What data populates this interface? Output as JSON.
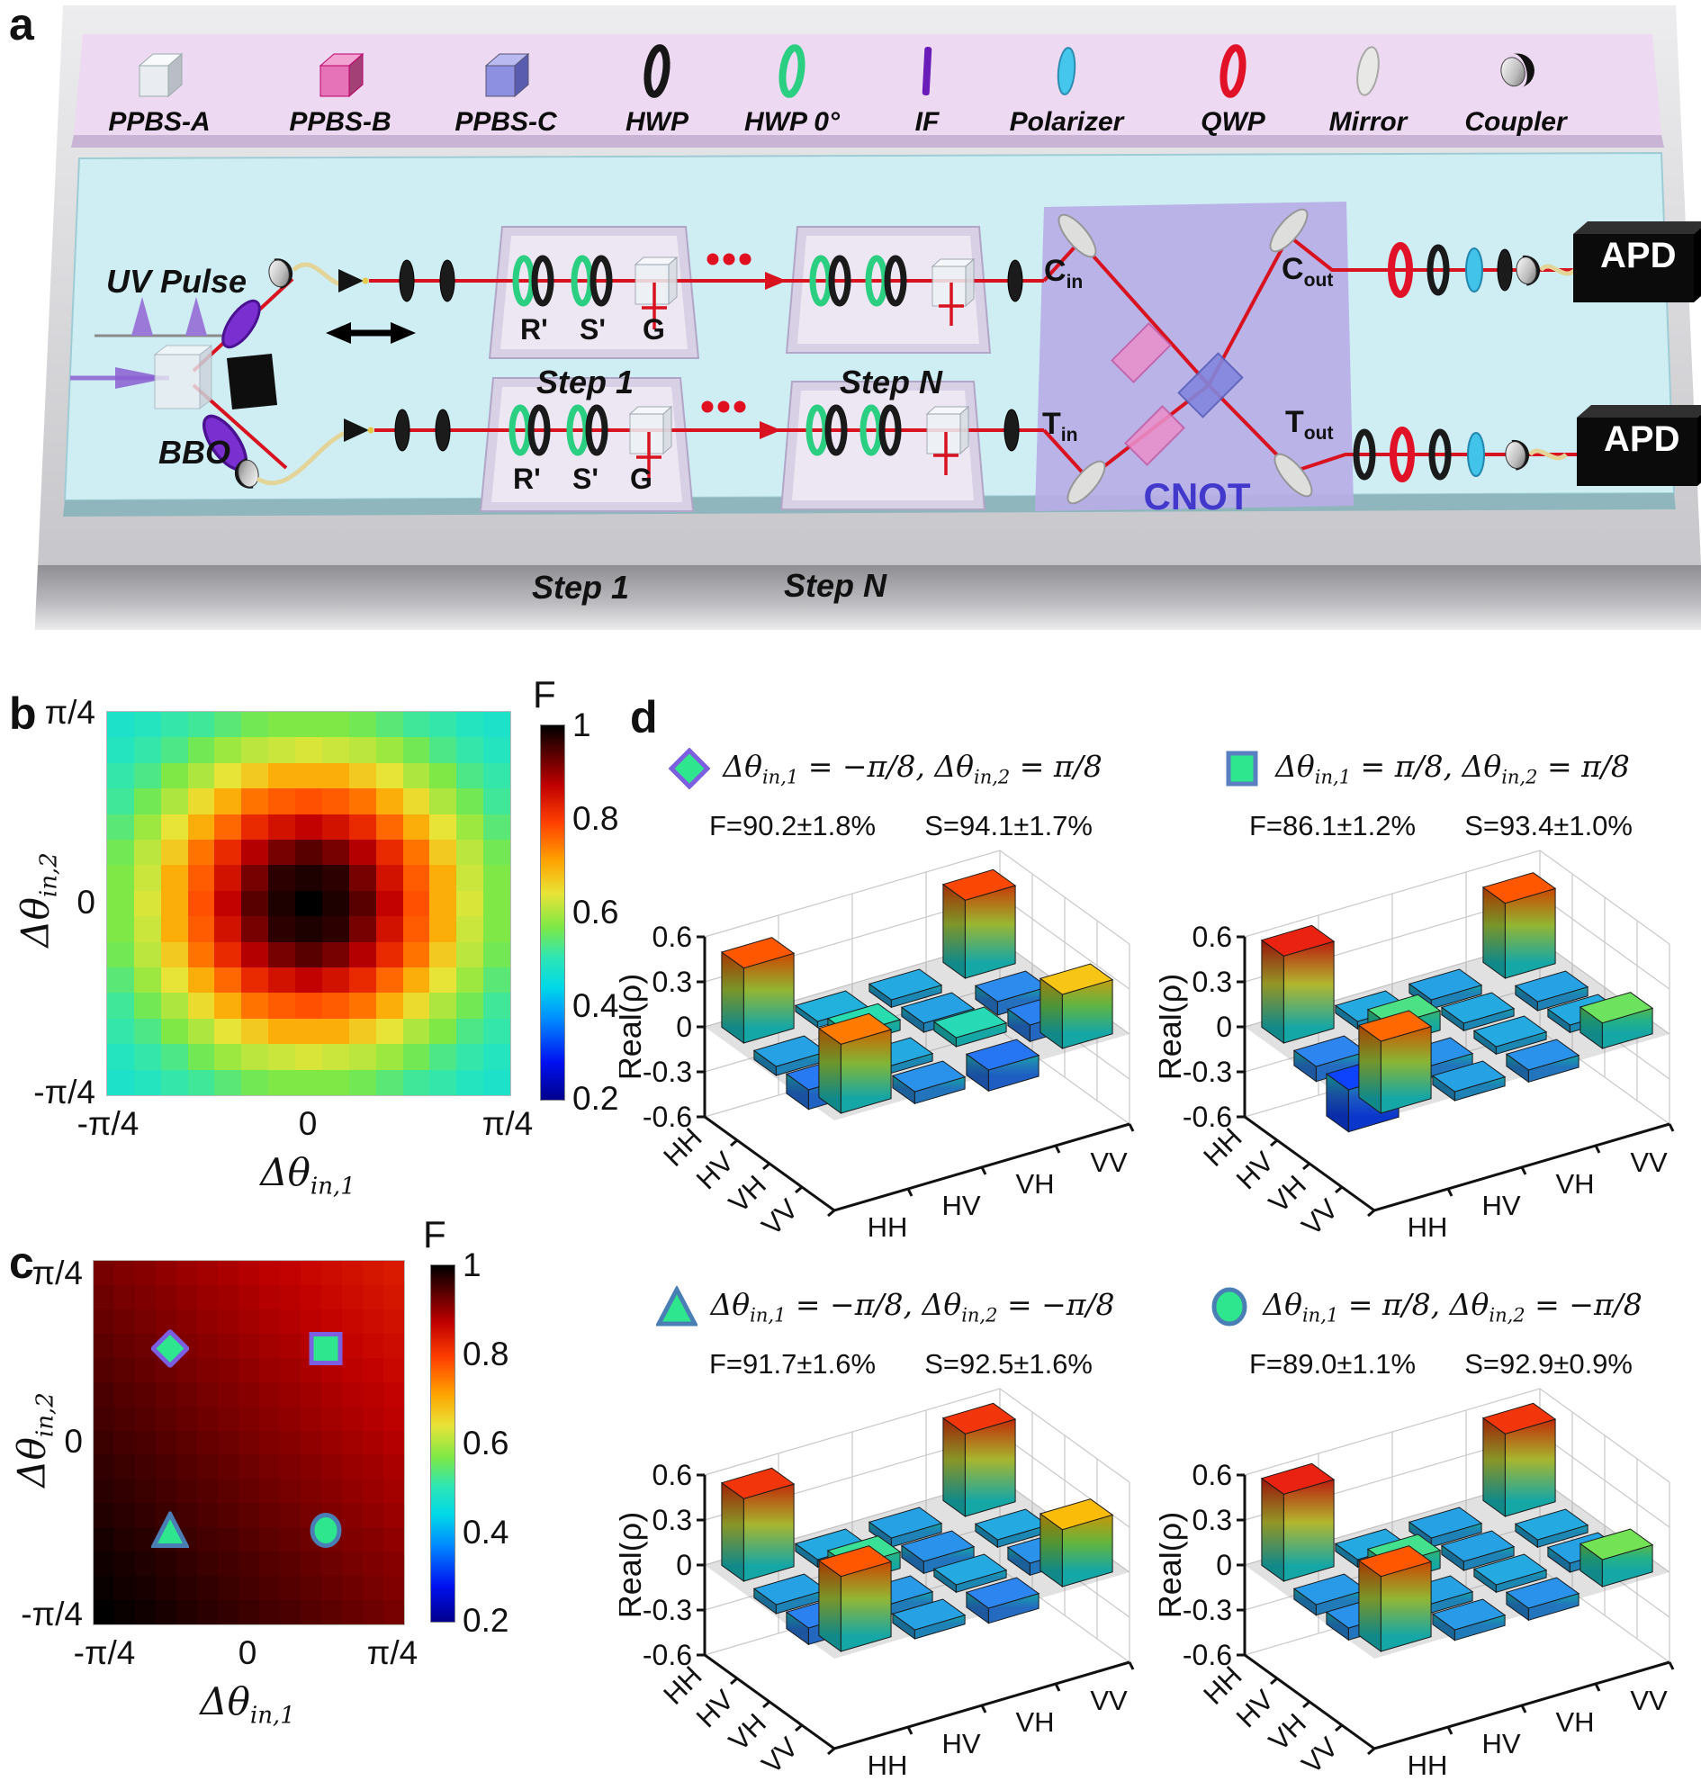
{
  "figure": {
    "panel_labels": {
      "a": "a",
      "b": "b",
      "c": "c",
      "d": "d"
    }
  },
  "panel_a": {
    "legend": {
      "items": [
        {
          "icon": "cube-white",
          "label": "PPBS-A"
        },
        {
          "icon": "cube-pink",
          "label": "PPBS-B"
        },
        {
          "icon": "cube-purple",
          "label": "PPBS-C"
        },
        {
          "icon": "ring-black",
          "label": "HWP"
        },
        {
          "icon": "ring-green",
          "label": "HWP 0°"
        },
        {
          "icon": "rod-purple",
          "label": "IF"
        },
        {
          "icon": "disc-cyan",
          "label": "Polarizer"
        },
        {
          "icon": "ring-red",
          "label": "QWP"
        },
        {
          "icon": "disc-white",
          "label": "Mirror"
        },
        {
          "icon": "coupler",
          "label": "Coupler"
        }
      ]
    },
    "labels": {
      "uv_pulse": "UV Pulse",
      "bbo": "BBO",
      "r_prime": "R'",
      "s_prime": "S'",
      "g": "G",
      "step_1": "Step 1",
      "step_n": "Step N",
      "cnot": "CNOT",
      "apd": "APD",
      "c": "C",
      "t": "T",
      "in": "in",
      "out": "out"
    }
  },
  "chart_data": [
    {
      "id": "b",
      "type": "heatmap",
      "xlabel": {
        "base": "Δθ",
        "sub": "in,1"
      },
      "ylabel": {
        "base": "Δθ",
        "sub": "in,2"
      },
      "x_ticks": [
        "-π/4",
        "0",
        "π/4"
      ],
      "y_ticks": [
        "π/4",
        "0",
        "-π/4"
      ],
      "x_range": [
        "-π/4",
        "π/4"
      ],
      "y_range": [
        "-π/4",
        "π/4"
      ],
      "colorbar": {
        "title": "F",
        "ticks": [
          "1",
          "0.8",
          "0.6",
          "0.4",
          "0.2"
        ],
        "value_range": [
          0.2,
          1
        ]
      },
      "values": [
        [
          0.48,
          0.49,
          0.51,
          0.52,
          0.54,
          0.56,
          0.57,
          0.57,
          0.57,
          0.56,
          0.54,
          0.52,
          0.51,
          0.49,
          0.48
        ],
        [
          0.49,
          0.51,
          0.53,
          0.56,
          0.59,
          0.61,
          0.62,
          0.63,
          0.62,
          0.61,
          0.59,
          0.56,
          0.53,
          0.51,
          0.49
        ],
        [
          0.51,
          0.53,
          0.57,
          0.6,
          0.64,
          0.67,
          0.7,
          0.7,
          0.7,
          0.67,
          0.64,
          0.6,
          0.57,
          0.53,
          0.51
        ],
        [
          0.52,
          0.56,
          0.6,
          0.65,
          0.7,
          0.75,
          0.77,
          0.78,
          0.77,
          0.75,
          0.7,
          0.65,
          0.6,
          0.56,
          0.52
        ],
        [
          0.54,
          0.59,
          0.64,
          0.7,
          0.76,
          0.82,
          0.85,
          0.87,
          0.85,
          0.82,
          0.76,
          0.7,
          0.64,
          0.59,
          0.54
        ],
        [
          0.56,
          0.61,
          0.67,
          0.75,
          0.82,
          0.88,
          0.92,
          0.94,
          0.92,
          0.88,
          0.82,
          0.75,
          0.67,
          0.61,
          0.56
        ],
        [
          0.57,
          0.62,
          0.7,
          0.77,
          0.85,
          0.92,
          0.97,
          0.98,
          0.97,
          0.92,
          0.85,
          0.77,
          0.7,
          0.62,
          0.57
        ],
        [
          0.57,
          0.63,
          0.7,
          0.78,
          0.87,
          0.94,
          0.98,
          1.0,
          0.98,
          0.94,
          0.87,
          0.78,
          0.7,
          0.63,
          0.57
        ],
        [
          0.57,
          0.62,
          0.7,
          0.77,
          0.85,
          0.92,
          0.97,
          0.98,
          0.97,
          0.92,
          0.85,
          0.77,
          0.7,
          0.62,
          0.57
        ],
        [
          0.56,
          0.61,
          0.67,
          0.75,
          0.82,
          0.88,
          0.92,
          0.94,
          0.92,
          0.88,
          0.82,
          0.75,
          0.67,
          0.61,
          0.56
        ],
        [
          0.54,
          0.59,
          0.64,
          0.7,
          0.76,
          0.82,
          0.85,
          0.87,
          0.85,
          0.82,
          0.76,
          0.7,
          0.64,
          0.59,
          0.54
        ],
        [
          0.52,
          0.56,
          0.6,
          0.65,
          0.7,
          0.75,
          0.77,
          0.78,
          0.77,
          0.75,
          0.7,
          0.65,
          0.6,
          0.56,
          0.52
        ],
        [
          0.51,
          0.53,
          0.57,
          0.6,
          0.64,
          0.67,
          0.7,
          0.7,
          0.7,
          0.67,
          0.64,
          0.6,
          0.57,
          0.53,
          0.51
        ],
        [
          0.49,
          0.51,
          0.53,
          0.56,
          0.59,
          0.61,
          0.62,
          0.63,
          0.62,
          0.61,
          0.59,
          0.56,
          0.53,
          0.51,
          0.49
        ],
        [
          0.48,
          0.49,
          0.51,
          0.52,
          0.54,
          0.56,
          0.57,
          0.57,
          0.57,
          0.56,
          0.54,
          0.52,
          0.51,
          0.49,
          0.48
        ]
      ]
    },
    {
      "id": "c",
      "type": "heatmap",
      "xlabel": {
        "base": "Δθ",
        "sub": "in,1"
      },
      "ylabel": {
        "base": "Δθ",
        "sub": "in,2"
      },
      "x_ticks": [
        "-π/4",
        "0",
        "π/4"
      ],
      "y_ticks": [
        "π/4",
        "0",
        "-π/4"
      ],
      "x_range": [
        "-π/4",
        "π/4"
      ],
      "y_range": [
        "-π/4",
        "π/4"
      ],
      "colorbar": {
        "title": "F",
        "ticks": [
          "1",
          "0.8",
          "0.6",
          "0.4",
          "0.2"
        ],
        "value_range": [
          0.2,
          1
        ]
      },
      "markers": [
        {
          "shape": "diamond",
          "theta_in_1": "-π/8",
          "theta_in_2": "π/8",
          "u": 0.25,
          "v": 0.75
        },
        {
          "shape": "square",
          "theta_in_1": "π/8",
          "theta_in_2": "π/8",
          "u": 0.75,
          "v": 0.75
        },
        {
          "shape": "triangle",
          "theta_in_1": "-π/8",
          "theta_in_2": "-π/8",
          "u": 0.25,
          "v": 0.25
        },
        {
          "shape": "circle",
          "theta_in_1": "π/8",
          "theta_in_2": "-π/8",
          "u": 0.75,
          "v": 0.25
        }
      ],
      "values": [
        [
          0.92,
          0.914,
          0.909,
          0.903,
          0.897,
          0.891,
          0.886,
          0.88,
          0.874,
          0.869,
          0.863,
          0.857,
          0.851,
          0.846,
          0.84
        ],
        [
          0.926,
          0.92,
          0.915,
          0.909,
          0.903,
          0.897,
          0.892,
          0.886,
          0.88,
          0.875,
          0.869,
          0.863,
          0.857,
          0.852,
          0.846
        ],
        [
          0.931,
          0.925,
          0.92,
          0.914,
          0.908,
          0.902,
          0.897,
          0.891,
          0.885,
          0.88,
          0.874,
          0.868,
          0.862,
          0.857,
          0.851
        ],
        [
          0.937,
          0.931,
          0.926,
          0.92,
          0.914,
          0.908,
          0.903,
          0.897,
          0.891,
          0.886,
          0.88,
          0.874,
          0.868,
          0.863,
          0.857
        ],
        [
          0.943,
          0.937,
          0.932,
          0.926,
          0.92,
          0.914,
          0.909,
          0.903,
          0.897,
          0.892,
          0.886,
          0.88,
          0.874,
          0.869,
          0.863
        ],
        [
          0.949,
          0.943,
          0.938,
          0.932,
          0.926,
          0.92,
          0.915,
          0.909,
          0.903,
          0.898,
          0.892,
          0.886,
          0.88,
          0.875,
          0.869
        ],
        [
          0.954,
          0.948,
          0.943,
          0.937,
          0.931,
          0.925,
          0.92,
          0.914,
          0.908,
          0.903,
          0.897,
          0.891,
          0.885,
          0.88,
          0.874
        ],
        [
          0.96,
          0.954,
          0.949,
          0.943,
          0.937,
          0.931,
          0.926,
          0.92,
          0.914,
          0.909,
          0.903,
          0.897,
          0.891,
          0.886,
          0.88
        ],
        [
          0.966,
          0.96,
          0.955,
          0.949,
          0.943,
          0.937,
          0.932,
          0.926,
          0.92,
          0.915,
          0.909,
          0.903,
          0.897,
          0.892,
          0.886
        ],
        [
          0.971,
          0.965,
          0.96,
          0.954,
          0.948,
          0.942,
          0.937,
          0.931,
          0.925,
          0.92,
          0.914,
          0.908,
          0.902,
          0.897,
          0.891
        ],
        [
          0.977,
          0.971,
          0.966,
          0.96,
          0.954,
          0.948,
          0.943,
          0.937,
          0.931,
          0.926,
          0.92,
          0.914,
          0.908,
          0.903,
          0.897
        ],
        [
          0.983,
          0.977,
          0.972,
          0.966,
          0.96,
          0.954,
          0.949,
          0.943,
          0.937,
          0.932,
          0.926,
          0.92,
          0.914,
          0.909,
          0.903
        ],
        [
          0.989,
          0.983,
          0.978,
          0.972,
          0.966,
          0.96,
          0.955,
          0.949,
          0.943,
          0.938,
          0.932,
          0.926,
          0.92,
          0.915,
          0.909
        ],
        [
          0.994,
          0.988,
          0.983,
          0.977,
          0.971,
          0.965,
          0.96,
          0.954,
          0.948,
          0.943,
          0.937,
          0.931,
          0.925,
          0.92,
          0.914
        ],
        [
          1.0,
          0.994,
          0.989,
          0.983,
          0.977,
          0.971,
          0.966,
          0.96,
          0.954,
          0.949,
          0.943,
          0.937,
          0.931,
          0.926,
          0.92
        ]
      ]
    },
    {
      "id": "d1",
      "type": "bar3d",
      "marker": "diamond",
      "title_parts": {
        "t1": "Δθ",
        "s1": "in,1",
        "m1": " = −π/8, ",
        "t2": "Δθ",
        "s2": "in,2",
        "m2": " = π/8"
      },
      "fidelity": "F=90.2±1.8%",
      "s_param": "S=94.1±1.7%",
      "zlabel": "Real(ρ)",
      "z_ticks": [
        "0.6",
        "0.3",
        "0",
        "-0.3",
        "-0.6"
      ],
      "zlim": [
        -0.6,
        0.6
      ],
      "x_categories": [
        "HH",
        "HV",
        "VH",
        "VV"
      ],
      "y_categories": [
        "HH",
        "HV",
        "VH",
        "VV"
      ],
      "values": [
        [
          0.5,
          -0.04,
          -0.05,
          0.52
        ],
        [
          -0.06,
          0.07,
          -0.06,
          -0.09
        ],
        [
          -0.13,
          -0.05,
          0.06,
          -0.11
        ],
        [
          0.46,
          -0.08,
          -0.14,
          0.36
        ]
      ]
    },
    {
      "id": "d2",
      "type": "bar3d",
      "marker": "square",
      "title_parts": {
        "t1": "Δθ",
        "s1": "in,1",
        "m1": " = π/8, ",
        "t2": "Δθ",
        "s2": "in,2",
        "m2": " = π/8"
      },
      "fidelity": "F=86.1±1.2%",
      "s_param": "S=93.4±1.0%",
      "zlabel": "Real(ρ)",
      "z_ticks": [
        "0.6",
        "0.3",
        "0",
        "-0.3",
        "-0.6"
      ],
      "zlim": [
        -0.6,
        0.6
      ],
      "x_categories": [
        "HH",
        "HV",
        "VH",
        "VV"
      ],
      "y_categories": [
        "HH",
        "HV",
        "VH",
        "VV"
      ],
      "values": [
        [
          0.58,
          -0.05,
          -0.06,
          0.5
        ],
        [
          -0.1,
          0.13,
          -0.05,
          -0.06
        ],
        [
          -0.28,
          -0.08,
          -0.05,
          -0.05
        ],
        [
          0.48,
          -0.06,
          -0.08,
          0.17
        ]
      ]
    },
    {
      "id": "d3",
      "type": "bar3d",
      "marker": "triangle",
      "title_parts": {
        "t1": "Δθ",
        "s1": "in,1",
        "m1": " = −π/8, ",
        "t2": "Δθ",
        "s2": "in,2",
        "m2": " = −π/8"
      },
      "fidelity": "F=91.7±1.6%",
      "s_param": "S=92.5±1.6%",
      "zlabel": "Real(ρ)",
      "z_ticks": [
        "0.6",
        "0.3",
        "0",
        "-0.3",
        "-0.6"
      ],
      "zlim": [
        -0.6,
        0.6
      ],
      "x_categories": [
        "HH",
        "HV",
        "VH",
        "VV"
      ],
      "y_categories": [
        "HH",
        "HV",
        "VH",
        "VV"
      ],
      "values": [
        [
          0.55,
          -0.05,
          -0.06,
          0.55
        ],
        [
          -0.06,
          0.11,
          -0.08,
          -0.05
        ],
        [
          -0.11,
          -0.07,
          -0.05,
          -0.08
        ],
        [
          0.5,
          -0.06,
          -0.1,
          0.38
        ]
      ]
    },
    {
      "id": "d4",
      "type": "bar3d",
      "marker": "circle",
      "title_parts": {
        "t1": "Δθ",
        "s1": "in,1",
        "m1": " = π/8, ",
        "t2": "Δθ",
        "s2": "in,2",
        "m2": " = −π/8"
      },
      "fidelity": "F=89.0±1.1%",
      "s_param": "S=92.9±0.9%",
      "zlabel": "Real(ρ)",
      "z_ticks": [
        "0.6",
        "0.3",
        "0",
        "-0.3",
        "-0.6"
      ],
      "zlim": [
        -0.6,
        0.6
      ],
      "x_categories": [
        "HH",
        "HV",
        "VH",
        "VV"
      ],
      "y_categories": [
        "HH",
        "HV",
        "VH",
        "VV"
      ],
      "values": [
        [
          0.58,
          -0.05,
          -0.06,
          0.55
        ],
        [
          -0.07,
          0.12,
          -0.06,
          -0.05
        ],
        [
          -0.08,
          -0.06,
          -0.05,
          -0.06
        ],
        [
          0.5,
          -0.07,
          -0.08,
          0.18
        ]
      ]
    }
  ],
  "colors": {
    "beam_red": "#d9121f",
    "board_cyan": "#cfeef4",
    "legend_slab_pink": "#eed9f2",
    "cnot_panel_purple": "#b7aee6",
    "marker_fill_green": "#2ee68e",
    "marker_stroke_purple": "#7c5fe0",
    "marker_stroke_blue": "#4a7fb5",
    "colorbar_top_black": "#000000",
    "colorbar_bottom_blue": "#00008b"
  }
}
